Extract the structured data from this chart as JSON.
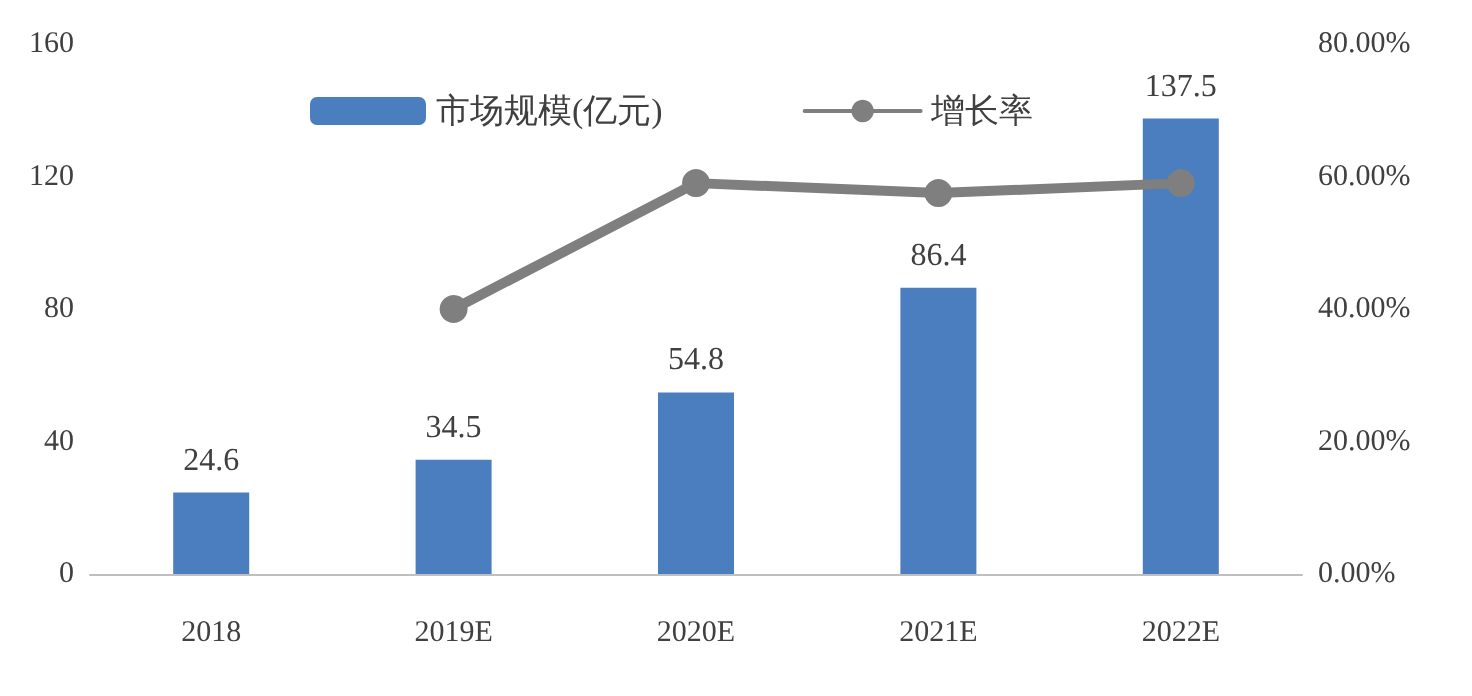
{
  "chart_data": {
    "type": "bar",
    "categories": [
      "2018",
      "2019E",
      "2020E",
      "2021E",
      "2022E"
    ],
    "series": [
      {
        "name": "市场规模(亿元)",
        "color": "#4a7ebf",
        "values": [
          24.6,
          34.5,
          54.8,
          86.4,
          137.5
        ]
      },
      {
        "name": "增长率",
        "type": "line",
        "axis": "y2",
        "color": "#7f7f7f",
        "marker": "circle",
        "values": [
          null,
          40,
          59,
          57.5,
          59
        ]
      }
    ],
    "ylim": [
      0,
      160
    ],
    "yticks": [
      0,
      40,
      80,
      120,
      160
    ],
    "y2lim": [
      0,
      80
    ],
    "y2ticks": [
      {
        "value": 0,
        "label": "0.00%"
      },
      {
        "value": 20,
        "label": "20.00%"
      },
      {
        "value": 40,
        "label": "40.00%"
      },
      {
        "value": 60,
        "label": "60.00%"
      },
      {
        "value": 80,
        "label": "80.00%"
      }
    ],
    "value_labels": [
      "24.6",
      "34.5",
      "54.8",
      "86.4",
      "137.5"
    ],
    "legend": "top",
    "grid": false
  }
}
